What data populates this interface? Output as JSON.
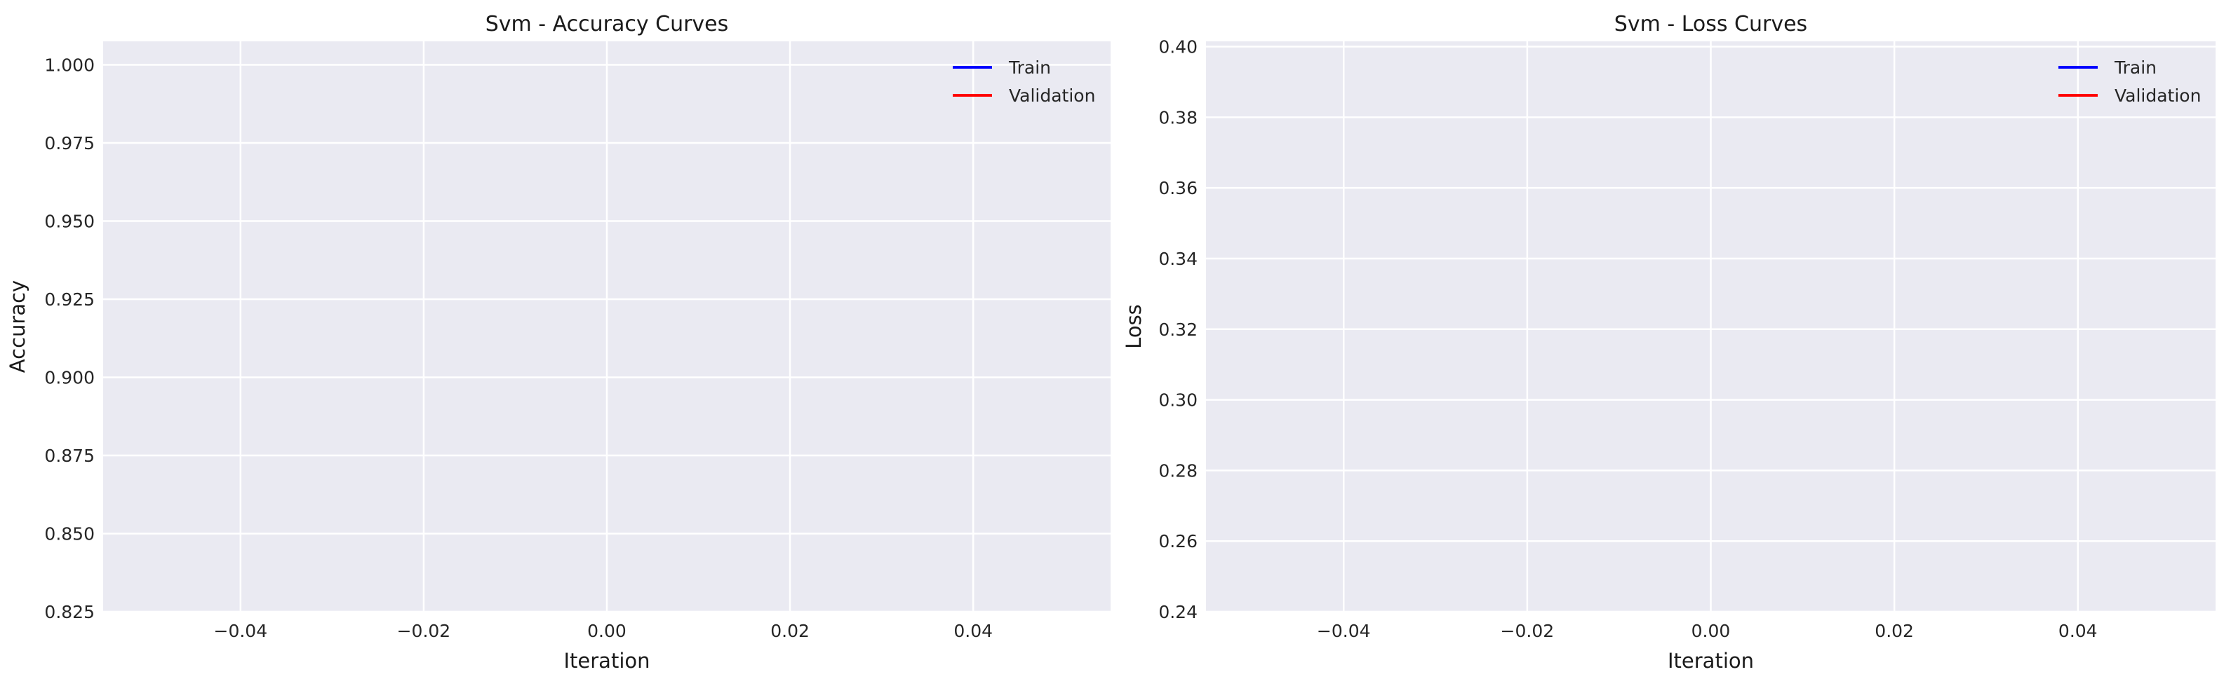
{
  "colors": {
    "panel_bg": "#eaeaf2",
    "grid": "#ffffff",
    "train": "#0000ff",
    "validation": "#ff0000"
  },
  "chart_data": [
    {
      "type": "line",
      "title": "Svm - Accuracy Curves",
      "xlabel": "Iteration",
      "ylabel": "Accuracy",
      "xlim": [
        -0.055,
        0.055
      ],
      "ylim": [
        0.825,
        1.0075
      ],
      "xticks": [
        -0.04,
        -0.02,
        0.0,
        0.02,
        0.04
      ],
      "xtick_labels": [
        "−0.04",
        "−0.02",
        "0.00",
        "0.02",
        "0.04"
      ],
      "yticks": [
        0.825,
        0.85,
        0.875,
        0.9,
        0.925,
        0.95,
        0.975,
        1.0
      ],
      "ytick_labels": [
        "0.825",
        "0.850",
        "0.875",
        "0.900",
        "0.925",
        "0.950",
        "0.975",
        "1.000"
      ],
      "grid": true,
      "legend_position": "top-right",
      "series": [
        {
          "name": "Train",
          "x": [],
          "y": []
        },
        {
          "name": "Validation",
          "x": [],
          "y": []
        }
      ]
    },
    {
      "type": "line",
      "title": "Svm - Loss Curves",
      "xlabel": "Iteration",
      "ylabel": "Loss",
      "xlim": [
        -0.055,
        0.055
      ],
      "ylim": [
        0.24,
        0.4015
      ],
      "xticks": [
        -0.04,
        -0.02,
        0.0,
        0.02,
        0.04
      ],
      "xtick_labels": [
        "−0.04",
        "−0.02",
        "0.00",
        "0.02",
        "0.04"
      ],
      "yticks": [
        0.24,
        0.26,
        0.28,
        0.3,
        0.32,
        0.34,
        0.36,
        0.38,
        0.4
      ],
      "ytick_labels": [
        "0.24",
        "0.26",
        "0.28",
        "0.30",
        "0.32",
        "0.34",
        "0.36",
        "0.38",
        "0.40"
      ],
      "grid": true,
      "legend_position": "top-right",
      "series": [
        {
          "name": "Train",
          "x": [],
          "y": []
        },
        {
          "name": "Validation",
          "x": [],
          "y": []
        }
      ]
    }
  ]
}
